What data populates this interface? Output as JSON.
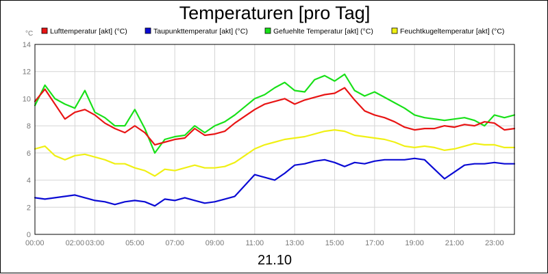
{
  "chart_data": {
    "type": "line",
    "title": "Temperaturen [pro Tag]",
    "xlabel": "21.10",
    "ylabel": "°C",
    "ylim": [
      0,
      14
    ],
    "yticks": [
      0,
      2,
      4,
      6,
      8,
      10,
      12,
      14
    ],
    "xlim": [
      0,
      24
    ],
    "xticks": [
      {
        "h": 0,
        "label": "00:00"
      },
      {
        "h": 2,
        "label": "02:00"
      },
      {
        "h": 3,
        "label": "03:00"
      },
      {
        "h": 5,
        "label": "05:00"
      },
      {
        "h": 7,
        "label": "07:00"
      },
      {
        "h": 9,
        "label": "09:00"
      },
      {
        "h": 11,
        "label": "11:00"
      },
      {
        "h": 13,
        "label": "13:00"
      },
      {
        "h": 15,
        "label": "15:00"
      },
      {
        "h": 17,
        "label": "17:00"
      },
      {
        "h": 19,
        "label": "19:00"
      },
      {
        "h": 21,
        "label": "21:00"
      },
      {
        "h": 23,
        "label": "23:00"
      }
    ],
    "grid": true,
    "legend_position": "top",
    "x": [
      0,
      0.5,
      1,
      1.5,
      2,
      2.5,
      3,
      3.5,
      4,
      4.5,
      5,
      5.5,
      6,
      6.5,
      7,
      7.5,
      8,
      8.5,
      9,
      9.5,
      10,
      10.5,
      11,
      11.5,
      12,
      12.5,
      13,
      13.5,
      14,
      14.5,
      15,
      15.5,
      16,
      16.5,
      17,
      17.5,
      18,
      18.5,
      19,
      19.5,
      20,
      20.5,
      21,
      21.5,
      22,
      22.5,
      23,
      23.5,
      24
    ],
    "series": [
      {
        "name": "Lufttemperatur [akt] (°C)",
        "color": "#e81414",
        "values": [
          9.8,
          10.7,
          9.6,
          8.5,
          9.0,
          9.2,
          8.8,
          8.2,
          7.8,
          7.5,
          8.0,
          7.5,
          6.6,
          6.8,
          7.0,
          7.1,
          7.8,
          7.3,
          7.4,
          7.6,
          8.2,
          8.7,
          9.2,
          9.6,
          9.8,
          10.0,
          9.6,
          9.9,
          10.1,
          10.3,
          10.4,
          10.8,
          9.9,
          9.1,
          8.8,
          8.6,
          8.3,
          7.9,
          7.7,
          7.8,
          7.8,
          8.0,
          7.9,
          8.1,
          8.0,
          8.3,
          8.2,
          7.7,
          7.8
        ]
      },
      {
        "name": "Taupunkttemperatur [akt] (°C)",
        "color": "#0a0ad4",
        "values": [
          2.7,
          2.6,
          2.7,
          2.8,
          2.9,
          2.7,
          2.5,
          2.4,
          2.2,
          2.4,
          2.5,
          2.4,
          2.1,
          2.6,
          2.5,
          2.7,
          2.5,
          2.3,
          2.4,
          2.6,
          2.8,
          3.6,
          4.4,
          4.2,
          4.0,
          4.5,
          5.1,
          5.2,
          5.4,
          5.5,
          5.3,
          5.0,
          5.3,
          5.2,
          5.4,
          5.5,
          5.5,
          5.5,
          5.6,
          5.5,
          4.8,
          4.1,
          4.6,
          5.1,
          5.2,
          5.2,
          5.3,
          5.2,
          5.2
        ]
      },
      {
        "name": "Gefuehlte Temperatur [akt] (°C)",
        "color": "#18e018",
        "values": [
          9.5,
          11.0,
          10.0,
          9.6,
          9.3,
          10.6,
          9.0,
          8.6,
          8.0,
          8.0,
          9.2,
          7.8,
          6.0,
          7.0,
          7.2,
          7.3,
          8.0,
          7.5,
          8.0,
          8.3,
          8.8,
          9.4,
          10.0,
          10.3,
          10.8,
          11.2,
          10.6,
          10.5,
          11.4,
          11.7,
          11.3,
          11.8,
          10.6,
          10.2,
          10.5,
          10.1,
          9.7,
          9.3,
          8.8,
          8.6,
          8.5,
          8.4,
          8.5,
          8.6,
          8.4,
          8.0,
          8.8,
          8.6,
          8.8
        ]
      },
      {
        "name": "Feuchtkugeltemperatur [akt] (°C)",
        "color": "#f0f014",
        "values": [
          6.3,
          6.5,
          5.8,
          5.5,
          5.8,
          5.9,
          5.7,
          5.5,
          5.2,
          5.2,
          4.9,
          4.7,
          4.3,
          4.8,
          4.7,
          4.9,
          5.1,
          4.9,
          4.9,
          5.0,
          5.3,
          5.8,
          6.3,
          6.6,
          6.8,
          7.0,
          7.1,
          7.2,
          7.4,
          7.6,
          7.7,
          7.6,
          7.3,
          7.2,
          7.1,
          7.0,
          6.8,
          6.5,
          6.4,
          6.5,
          6.4,
          6.2,
          6.3,
          6.5,
          6.7,
          6.6,
          6.6,
          6.4,
          6.4
        ]
      }
    ]
  }
}
